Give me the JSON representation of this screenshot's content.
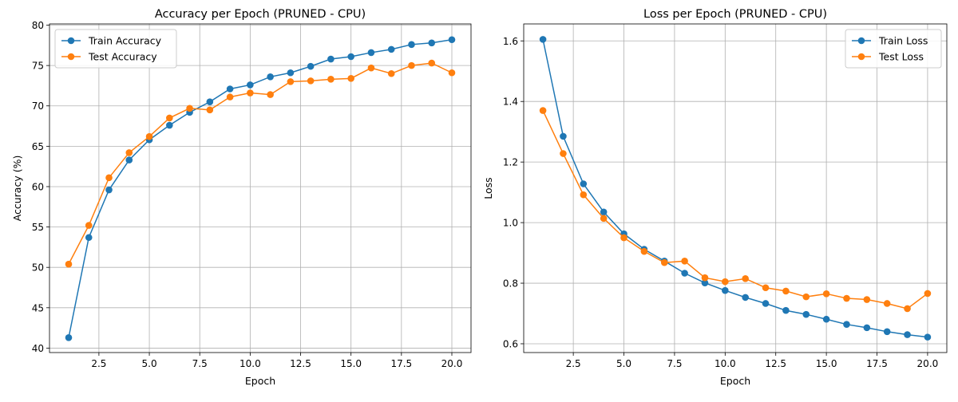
{
  "chart_data": [
    {
      "type": "line",
      "title": "Accuracy per Epoch (PRUNED - CPU)",
      "xlabel": "Epoch",
      "ylabel": "Accuracy (%)",
      "xlim": [
        0.05,
        20.95
      ],
      "ylim": [
        39.45,
        80.15
      ],
      "xticks": [
        2.5,
        5.0,
        7.5,
        10.0,
        12.5,
        15.0,
        17.5,
        20.0
      ],
      "xtick_labels": [
        "2.5",
        "5.0",
        "7.5",
        "10.0",
        "12.5",
        "15.0",
        "17.5",
        "20.0"
      ],
      "yticks": [
        40,
        45,
        50,
        55,
        60,
        65,
        70,
        75,
        80
      ],
      "ytick_labels": [
        "40",
        "45",
        "50",
        "55",
        "60",
        "65",
        "70",
        "75",
        "80"
      ],
      "grid": true,
      "legend_position": "upper-left",
      "x": [
        1,
        2,
        3,
        4,
        5,
        6,
        7,
        8,
        9,
        10,
        11,
        12,
        13,
        14,
        15,
        16,
        17,
        18,
        19,
        20
      ],
      "series": [
        {
          "name": "Train Accuracy",
          "color": "#1f77b4",
          "values": [
            41.3,
            53.7,
            59.6,
            63.3,
            65.8,
            67.6,
            69.2,
            70.5,
            72.1,
            72.6,
            73.6,
            74.1,
            74.9,
            75.8,
            76.1,
            76.6,
            77.0,
            77.6,
            77.8,
            78.2
          ]
        },
        {
          "name": "Test Accuracy",
          "color": "#ff7f0e",
          "values": [
            50.4,
            55.2,
            61.1,
            64.2,
            66.2,
            68.5,
            69.7,
            69.5,
            71.1,
            71.6,
            71.4,
            73.0,
            73.1,
            73.3,
            73.4,
            74.7,
            74.0,
            75.0,
            75.3,
            74.1
          ]
        }
      ]
    },
    {
      "type": "line",
      "title": "Loss per Epoch (PRUNED - CPU)",
      "xlabel": "Epoch",
      "ylabel": "Loss",
      "xlim": [
        0.05,
        20.95
      ],
      "ylim": [
        0.571,
        1.656
      ],
      "xticks": [
        2.5,
        5.0,
        7.5,
        10.0,
        12.5,
        15.0,
        17.5,
        20.0
      ],
      "xtick_labels": [
        "2.5",
        "5.0",
        "7.5",
        "10.0",
        "12.5",
        "15.0",
        "17.5",
        "20.0"
      ],
      "yticks": [
        0.6,
        0.8,
        1.0,
        1.2,
        1.4,
        1.6
      ],
      "ytick_labels": [
        "0.6",
        "0.8",
        "1.0",
        "1.2",
        "1.4",
        "1.6"
      ],
      "grid": true,
      "legend_position": "upper-right",
      "x": [
        1,
        2,
        3,
        4,
        5,
        6,
        7,
        8,
        9,
        10,
        11,
        12,
        13,
        14,
        15,
        16,
        17,
        18,
        19,
        20
      ],
      "series": [
        {
          "name": "Train Loss",
          "color": "#1f77b4",
          "values": [
            1.605,
            1.285,
            1.128,
            1.035,
            0.963,
            0.912,
            0.873,
            0.833,
            0.801,
            0.776,
            0.753,
            0.733,
            0.71,
            0.697,
            0.681,
            0.664,
            0.653,
            0.64,
            0.63,
            0.622
          ]
        },
        {
          "name": "Test Loss",
          "color": "#ff7f0e",
          "values": [
            1.37,
            1.228,
            1.092,
            1.014,
            0.95,
            0.905,
            0.868,
            0.873,
            0.818,
            0.805,
            0.815,
            0.785,
            0.774,
            0.755,
            0.765,
            0.75,
            0.746,
            0.733,
            0.716,
            0.766
          ]
        }
      ]
    }
  ]
}
